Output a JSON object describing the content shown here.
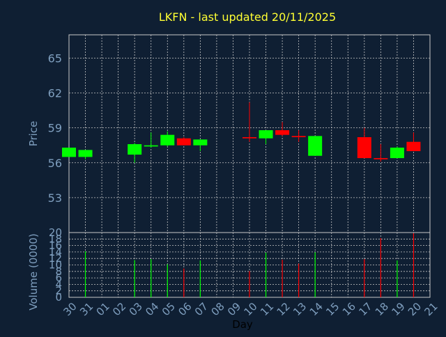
{
  "chart_data": {
    "type": "candlestick",
    "title": "LKFN - last updated 20/11/2025",
    "colors": {
      "background": "#0f1f33",
      "title": "#ffff33",
      "axis_text": "#7f9fbf",
      "grid": "#c8c8c8",
      "up": "#00ff00",
      "down": "#ff0000"
    },
    "grid": true,
    "x_axis": {
      "label": "Day",
      "tick_labels": [
        "30",
        "31",
        "01",
        "02",
        "03",
        "04",
        "05",
        "06",
        "07",
        "08",
        "09",
        "10",
        "11",
        "12",
        "13",
        "14",
        "15",
        "16",
        "17",
        "18",
        "19",
        "20",
        "21"
      ]
    },
    "price_panel": {
      "ylabel": "Price",
      "ylim": [
        50.0,
        67.0
      ],
      "ticks": [
        53,
        56,
        59,
        62,
        65
      ],
      "candles": [
        {
          "day": "30",
          "open": 56.5,
          "high": 57.3,
          "low": 56.5,
          "close": 57.3
        },
        {
          "day": "31",
          "open": 56.5,
          "high": 57.1,
          "low": 56.3,
          "close": 57.1
        },
        {
          "day": "03",
          "open": 56.7,
          "high": 57.7,
          "low": 56.0,
          "close": 57.6
        },
        {
          "day": "04",
          "open": 57.4,
          "high": 58.6,
          "low": 57.3,
          "close": 57.5
        },
        {
          "day": "05",
          "open": 57.5,
          "high": 58.7,
          "low": 57.4,
          "close": 58.4
        },
        {
          "day": "06",
          "open": 58.1,
          "high": 58.2,
          "low": 57.5,
          "close": 57.5
        },
        {
          "day": "07",
          "open": 57.5,
          "high": 58.0,
          "low": 57.0,
          "close": 58.0
        },
        {
          "day": "10",
          "open": 58.2,
          "high": 61.2,
          "low": 57.8,
          "close": 58.1
        },
        {
          "day": "11",
          "open": 58.1,
          "high": 58.8,
          "low": 57.6,
          "close": 58.8
        },
        {
          "day": "12",
          "open": 58.8,
          "high": 59.5,
          "low": 58.3,
          "close": 58.4
        },
        {
          "day": "13",
          "open": 58.3,
          "high": 58.8,
          "low": 57.8,
          "close": 58.2
        },
        {
          "day": "14",
          "open": 56.6,
          "high": 58.3,
          "low": 56.6,
          "close": 58.3
        },
        {
          "day": "17",
          "open": 58.2,
          "high": 59.0,
          "low": 56.4,
          "close": 56.4
        },
        {
          "day": "18",
          "open": 56.4,
          "high": 57.6,
          "low": 56.1,
          "close": 56.3
        },
        {
          "day": "19",
          "open": 56.4,
          "high": 57.4,
          "low": 56.4,
          "close": 57.3
        },
        {
          "day": "20",
          "open": 57.8,
          "high": 58.6,
          "low": 57.0,
          "close": 57.0
        }
      ]
    },
    "volume_panel": {
      "ylabel": "Volume (0000)",
      "ylim": [
        0,
        20
      ],
      "ticks": [
        0,
        2,
        4,
        6,
        8,
        10,
        12,
        14,
        16,
        18,
        20
      ],
      "bars": [
        {
          "day": "31",
          "value": 14.2,
          "color": "up"
        },
        {
          "day": "03",
          "value": 11.5,
          "color": "up"
        },
        {
          "day": "04",
          "value": 11.8,
          "color": "up"
        },
        {
          "day": "05",
          "value": 10.2,
          "color": "up"
        },
        {
          "day": "06",
          "value": 8.9,
          "color": "down"
        },
        {
          "day": "07",
          "value": 11.4,
          "color": "up"
        },
        {
          "day": "10",
          "value": 8.1,
          "color": "down"
        },
        {
          "day": "11",
          "value": 13.8,
          "color": "up"
        },
        {
          "day": "12",
          "value": 11.6,
          "color": "down"
        },
        {
          "day": "13",
          "value": 10.4,
          "color": "down"
        },
        {
          "day": "14",
          "value": 13.9,
          "color": "up"
        },
        {
          "day": "17",
          "value": 11.8,
          "color": "down"
        },
        {
          "day": "18",
          "value": 18.3,
          "color": "down"
        },
        {
          "day": "19",
          "value": 11.4,
          "color": "up"
        },
        {
          "day": "20",
          "value": 19.8,
          "color": "down"
        }
      ]
    }
  }
}
